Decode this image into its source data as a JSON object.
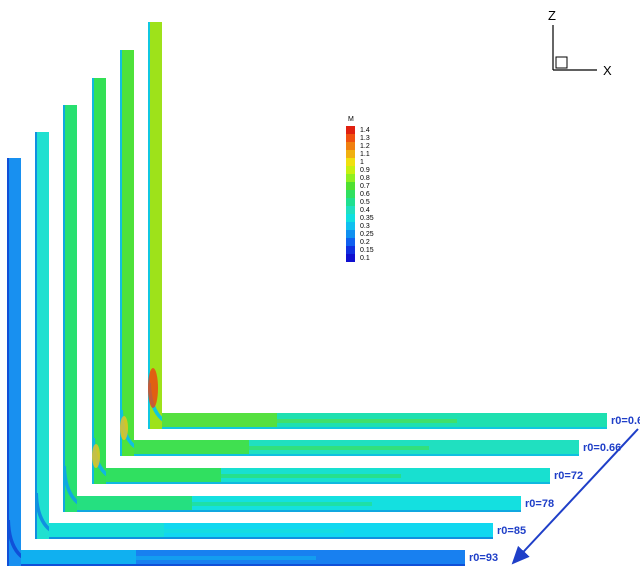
{
  "axes": {
    "z": "Z",
    "x": "X"
  },
  "legend": {
    "title": "M",
    "levels": [
      "1.4",
      "1.3",
      "1.2",
      "1.1",
      "1",
      "0.9",
      "0.8",
      "0.7",
      "0.6",
      "0.5",
      "0.4",
      "0.35",
      "0.3",
      "0.25",
      "0.2",
      "0.15",
      "0.1"
    ]
  },
  "labels": [
    "r0=0.6",
    "r0=0.66",
    "r0=72",
    "r0=78",
    "r0=85",
    "r0=93"
  ]
}
